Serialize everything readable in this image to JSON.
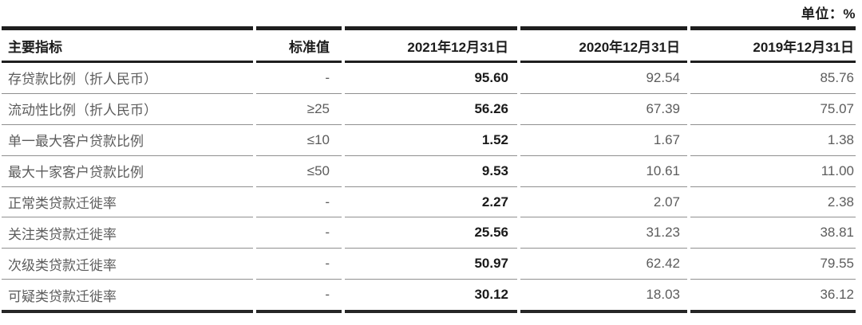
{
  "unit_label": "单位：%",
  "table": {
    "headers": {
      "indicator": "主要指标",
      "standard": "标准值",
      "date_2021": "2021年12月31日",
      "date_2020": "2020年12月31日",
      "date_2019": "2019年12月31日"
    },
    "rows": [
      {
        "indicator": "存贷款比例（折人民币）",
        "standard": "-",
        "v2021": "95.60",
        "v2020": "92.54",
        "v2019": "85.76"
      },
      {
        "indicator": "流动性比例（折人民币）",
        "standard": "≥25",
        "v2021": "56.26",
        "v2020": "67.39",
        "v2019": "75.07"
      },
      {
        "indicator": "单一最大客户贷款比例",
        "standard": "≤10",
        "v2021": "1.52",
        "v2020": "1.67",
        "v2019": "1.38"
      },
      {
        "indicator": "最大十家客户贷款比例",
        "standard": "≤50",
        "v2021": "9.53",
        "v2020": "10.61",
        "v2019": "11.00"
      },
      {
        "indicator": "正常类贷款迁徙率",
        "standard": "-",
        "v2021": "2.27",
        "v2020": "2.07",
        "v2019": "2.38"
      },
      {
        "indicator": "关注类贷款迁徙率",
        "standard": "-",
        "v2021": "25.56",
        "v2020": "31.23",
        "v2019": "38.81"
      },
      {
        "indicator": "次级类贷款迁徙率",
        "standard": "-",
        "v2021": "50.97",
        "v2020": "62.42",
        "v2019": "79.55"
      },
      {
        "indicator": "可疑类贷款迁徙率",
        "standard": "-",
        "v2021": "30.12",
        "v2020": "18.03",
        "v2019": "36.12"
      }
    ]
  },
  "colors": {
    "header_bar_black": "#1e1e1e",
    "bottom_bar_black": "#262626",
    "separator_gray": "#8f8f8f",
    "body_text_gray": "#5c5c5c",
    "bold_value_black": "#1a1a1a",
    "background": "#ffffff"
  }
}
